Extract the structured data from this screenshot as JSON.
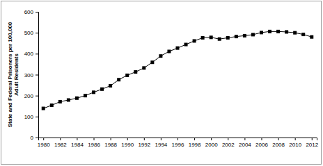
{
  "chart_data": {
    "type": "line",
    "marker": "square",
    "color": "#000000",
    "y_label": [
      "State and Federal Prisoners per 100,000",
      "Adult Residents"
    ],
    "x": [
      1980,
      1981,
      1982,
      1983,
      1984,
      1985,
      1986,
      1987,
      1988,
      1989,
      1990,
      1991,
      1992,
      1993,
      1994,
      1995,
      1996,
      1997,
      1998,
      1999,
      2000,
      2001,
      2002,
      2003,
      2004,
      2005,
      2006,
      2007,
      2008,
      2009,
      2010,
      2011,
      2012
    ],
    "values": [
      139,
      154,
      171,
      179,
      188,
      200,
      216,
      231,
      247,
      276,
      297,
      313,
      332,
      359,
      389,
      411,
      427,
      444,
      461,
      476,
      478,
      470,
      476,
      482,
      486,
      491,
      501,
      506,
      506,
      504,
      500,
      492,
      480
    ],
    "xlim": [
      1979.4,
      2012.6
    ],
    "xticks": [
      1980,
      1982,
      1984,
      1986,
      1988,
      1990,
      1992,
      1994,
      1996,
      1998,
      2000,
      2002,
      2004,
      2006,
      2008,
      2010,
      2012
    ],
    "ylim": [
      0,
      600
    ],
    "yticks": [
      0,
      100,
      200,
      300,
      400,
      500,
      600
    ],
    "grid": false
  }
}
